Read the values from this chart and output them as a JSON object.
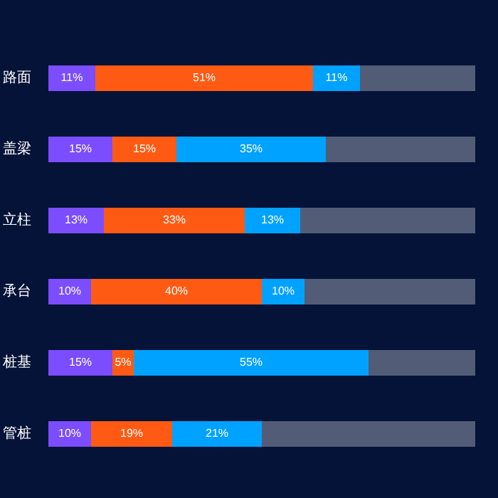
{
  "chart_data": {
    "type": "bar",
    "orientation": "horizontal",
    "stacked": true,
    "categories": [
      "路面",
      "盖梁",
      "立柱",
      "承台",
      "桩基",
      "管桩"
    ],
    "tick_labels": "y",
    "legend": false,
    "series": [
      {
        "color": "#7b4dff",
        "values": [
          11,
          15,
          13,
          10,
          15,
          10
        ],
        "value_labels": [
          "11%",
          "15%",
          "13%",
          "10%",
          "15%",
          "10%"
        ]
      },
      {
        "color": "#ff5a14",
        "values": [
          51,
          15,
          33,
          40,
          5,
          19
        ],
        "value_labels": [
          "51%",
          "15%",
          "33%",
          "40%",
          "5%",
          "19%"
        ]
      },
      {
        "color": "#00a2ff",
        "values": [
          11,
          35,
          13,
          10,
          55,
          21
        ],
        "value_labels": [
          "11%",
          "35%",
          "13%",
          "10%",
          "55%",
          "21%"
        ]
      },
      {
        "color": "#525c76",
        "values": [
          27,
          35,
          41,
          40,
          25,
          50
        ]
      }
    ]
  }
}
